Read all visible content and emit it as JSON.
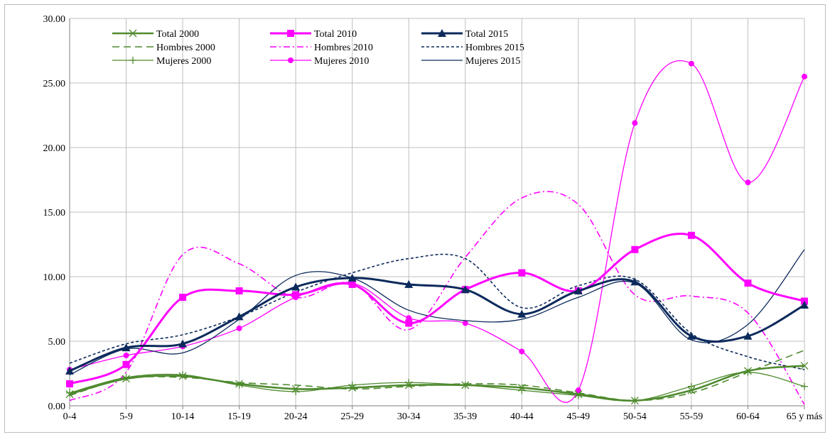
{
  "chart_data": {
    "type": "line",
    "categories": [
      "0-4",
      "5-9",
      "10-14",
      "15-19",
      "20-24",
      "25-29",
      "30-34",
      "35-39",
      "40-44",
      "45-49",
      "50-54",
      "55-59",
      "60-64",
      "65 y más"
    ],
    "ylim": [
      0,
      30
    ],
    "yticks": [
      "0.00",
      "5.00",
      "10.00",
      "15.00",
      "20.00",
      "25.00",
      "30.00"
    ],
    "grid": true,
    "legend_position": "top-left",
    "series": [
      {
        "name": "Total 2000",
        "color": "#4e8a2e",
        "dash": "none",
        "width": 2.6,
        "marker": "x",
        "values": [
          0.9,
          2.1,
          2.3,
          1.7,
          1.3,
          1.4,
          1.6,
          1.6,
          1.4,
          0.9,
          0.4,
          1.2,
          2.7,
          3.1
        ]
      },
      {
        "name": "Total 2010",
        "color": "#ff00ff",
        "dash": "none",
        "width": 3,
        "marker": "square",
        "values": [
          1.7,
          3.2,
          8.4,
          8.9,
          8.6,
          9.4,
          6.4,
          9.0,
          10.3,
          8.9,
          12.1,
          13.2,
          9.5,
          8.1
        ]
      },
      {
        "name": "Total 2015",
        "color": "#0c2a5c",
        "dash": "none",
        "width": 3,
        "marker": "triangle",
        "values": [
          2.7,
          4.5,
          4.8,
          6.9,
          9.2,
          9.9,
          9.4,
          9.0,
          7.1,
          8.9,
          9.6,
          5.4,
          5.4,
          7.8
        ]
      },
      {
        "name": "Hombres 2000",
        "color": "#4e8a2e",
        "dash": "10,6",
        "width": 1.6,
        "marker": "none",
        "values": [
          0.8,
          2.1,
          2.2,
          1.8,
          1.6,
          1.3,
          1.5,
          1.7,
          1.6,
          1.0,
          0.4,
          1.0,
          2.6,
          4.3
        ]
      },
      {
        "name": "Hombres 2010",
        "color": "#ff00ff",
        "dash": "9,4,2,4",
        "width": 1.6,
        "marker": "none",
        "values": [
          0.4,
          2.6,
          11.7,
          11.0,
          8.4,
          9.5,
          5.9,
          11.5,
          16.1,
          15.6,
          8.6,
          8.5,
          7.2,
          0.1
        ]
      },
      {
        "name": "Hombres 2015",
        "color": "#0c2a5c",
        "dash": "4,3",
        "width": 1.6,
        "marker": "none",
        "values": [
          3.3,
          4.8,
          5.5,
          6.9,
          8.8,
          10.3,
          11.4,
          11.4,
          7.6,
          9.3,
          9.8,
          5.6,
          3.8,
          2.8
        ]
      },
      {
        "name": "Mujeres 2000",
        "color": "#4e8a2e",
        "dash": "none",
        "width": 1.3,
        "marker": "plus",
        "values": [
          1.0,
          2.2,
          2.4,
          1.6,
          1.1,
          1.6,
          1.8,
          1.6,
          1.2,
          0.8,
          0.4,
          1.5,
          2.6,
          1.5
        ]
      },
      {
        "name": "Mujeres 2010",
        "color": "#ff00ff",
        "dash": "none",
        "width": 1.3,
        "marker": "circle",
        "values": [
          2.8,
          3.9,
          4.6,
          6.0,
          8.4,
          9.5,
          6.8,
          6.4,
          4.2,
          1.2,
          21.9,
          26.5,
          17.3,
          25.5
        ]
      },
      {
        "name": "Mujeres 2015",
        "color": "#0c2a5c",
        "dash": "none",
        "width": 1.3,
        "marker": "none",
        "values": [
          2.4,
          4.4,
          4.1,
          6.7,
          10.1,
          9.9,
          7.4,
          6.6,
          6.7,
          8.4,
          9.5,
          5.1,
          6.3,
          12.1
        ]
      }
    ]
  }
}
